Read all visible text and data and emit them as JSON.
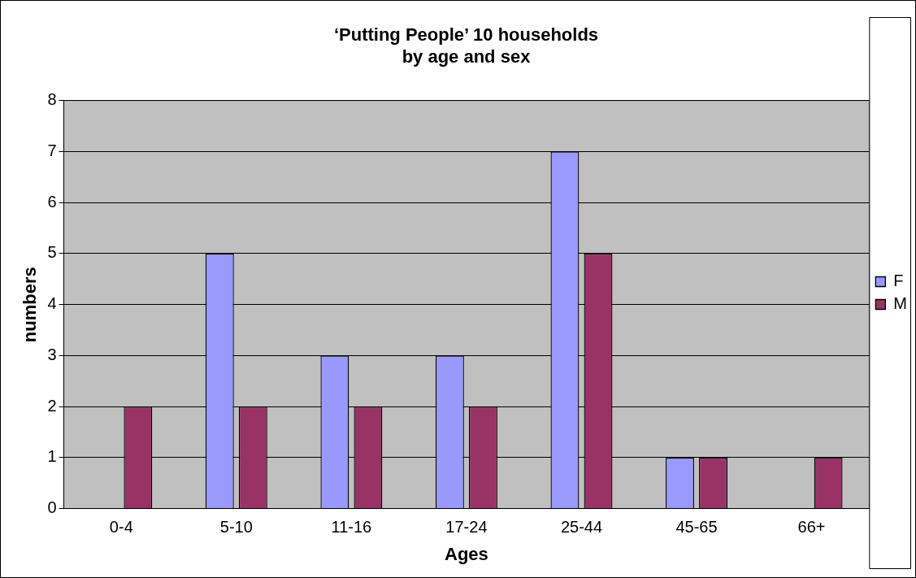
{
  "chart_data": {
    "type": "bar",
    "title": "‘Putting People’ 10 households\nby age and sex",
    "xlabel": "Ages",
    "ylabel": "numbers",
    "categories": [
      "0-4",
      "5-10",
      "11-16",
      "17-24",
      "25-44",
      "45-65",
      "66+"
    ],
    "series": [
      {
        "name": "F",
        "color": "#9999ff",
        "values": [
          0,
          5,
          3,
          3,
          7,
          1,
          0
        ]
      },
      {
        "name": "M",
        "color": "#993366",
        "values": [
          2,
          2,
          2,
          2,
          5,
          1,
          1
        ]
      }
    ],
    "ylim": [
      0,
      8
    ],
    "yticks": [
      0,
      1,
      2,
      3,
      4,
      5,
      6,
      7,
      8
    ],
    "grid": "y",
    "legend": "right"
  }
}
